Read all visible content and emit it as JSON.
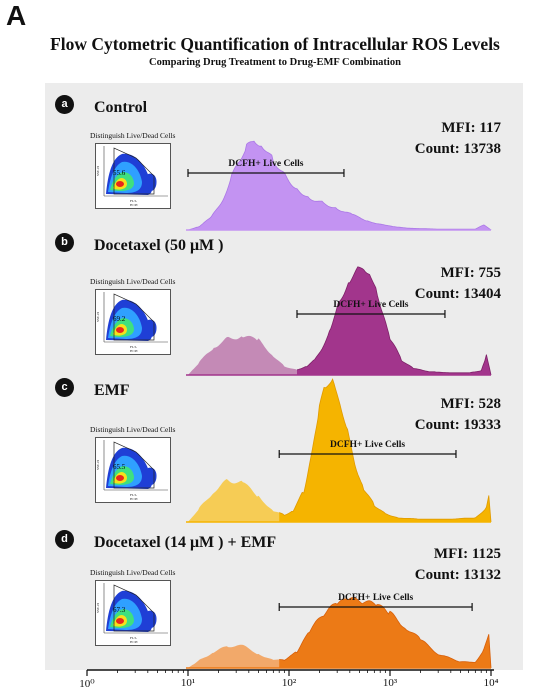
{
  "panel_label": "A",
  "header": {
    "title": "Flow Cytometric Quantification of Intracellular ROS Levels",
    "subtitle": "Comparing Drug Treatment to Drug-EMF Combination"
  },
  "colors": {
    "background": "#ececec",
    "control": "#c393f2",
    "docetaxel": "#a2358c",
    "emf": "#f5b400",
    "combo": "#ec7a16",
    "axis": "#111111"
  },
  "chart_data": {
    "type": "area",
    "x_scale": "log",
    "xlim": [
      1,
      10000
    ],
    "x_ticks": [
      "10⁰",
      "10¹",
      "10²",
      "10³",
      "10⁴"
    ],
    "inset_title": "Distinguish Live/Dead Cells",
    "gate_label": "DCFH+ Live Cells",
    "series": [
      {
        "letter": "a",
        "name": "Control",
        "mfi_text": "MFI: 117",
        "count_text": "Count: 13738",
        "mfi": 117,
        "count": 13738,
        "inset_percent": "55.6",
        "color_key": "control",
        "gate_range": [
          10,
          350
        ],
        "x": [
          10,
          13,
          17,
          22,
          27,
          32,
          38,
          45,
          55,
          70,
          90,
          120,
          160,
          220,
          300,
          420,
          600,
          900,
          1500,
          3000,
          7000,
          8500,
          10000
        ],
        "y": [
          0,
          0.04,
          0.14,
          0.34,
          0.58,
          0.78,
          0.92,
          1.0,
          0.94,
          0.78,
          0.62,
          0.46,
          0.36,
          0.3,
          0.24,
          0.17,
          0.1,
          0.05,
          0.02,
          0.01,
          0.01,
          0.06,
          0
        ]
      },
      {
        "letter": "b",
        "name": "Docetaxel (50 μM )",
        "mfi_text": "MFI: 755",
        "count_text": "Count: 13404",
        "mfi": 755,
        "count": 13404,
        "inset_percent": "69.2",
        "color_key": "docetaxel",
        "gate_range": [
          120,
          3500
        ],
        "x": [
          10,
          13,
          18,
          25,
          35,
          50,
          70,
          90,
          120,
          150,
          180,
          220,
          260,
          320,
          400,
          480,
          550,
          650,
          750,
          850,
          1000,
          1300,
          1700,
          2500,
          4000,
          6000,
          8000,
          9000,
          10000
        ],
        "y": [
          0,
          0.12,
          0.26,
          0.34,
          0.36,
          0.32,
          0.18,
          0.08,
          0.05,
          0.08,
          0.14,
          0.28,
          0.46,
          0.7,
          0.88,
          0.98,
          1.0,
          0.92,
          0.76,
          0.54,
          0.34,
          0.14,
          0.06,
          0.03,
          0.02,
          0.02,
          0.04,
          0.18,
          0
        ]
      },
      {
        "letter": "c",
        "name": "EMF",
        "mfi_text": "MFI: 528",
        "count_text": "Count: 19333",
        "mfi": 528,
        "count": 19333,
        "inset_percent": "65.5",
        "color_key": "emf",
        "gate_range": [
          80,
          4500
        ],
        "x": [
          10,
          13,
          18,
          25,
          35,
          50,
          70,
          90,
          110,
          140,
          170,
          200,
          230,
          270,
          320,
          380,
          450,
          550,
          700,
          900,
          1200,
          2000,
          4000,
          7000,
          9000,
          9500,
          10000
        ],
        "y": [
          0,
          0.1,
          0.22,
          0.3,
          0.28,
          0.18,
          0.08,
          0.05,
          0.08,
          0.22,
          0.5,
          0.82,
          0.98,
          1.0,
          0.86,
          0.64,
          0.42,
          0.24,
          0.12,
          0.06,
          0.03,
          0.02,
          0.02,
          0.03,
          0.1,
          0.18,
          0
        ]
      },
      {
        "letter": "d",
        "name": "Docetaxel (14 μM ) + EMF",
        "mfi_text": "MFI: 1125",
        "count_text": "Count: 13132",
        "mfi": 1125,
        "count": 13132,
        "inset_percent": "67.3",
        "color_key": "combo",
        "gate_range": [
          80,
          6500
        ],
        "x": [
          10,
          13,
          18,
          25,
          35,
          50,
          70,
          90,
          120,
          160,
          220,
          300,
          400,
          550,
          750,
          1000,
          1400,
          2000,
          3000,
          5000,
          7000,
          8500,
          9500,
          10000
        ],
        "y": [
          0,
          0.08,
          0.16,
          0.22,
          0.22,
          0.14,
          0.08,
          0.08,
          0.16,
          0.36,
          0.54,
          0.64,
          0.68,
          0.66,
          0.62,
          0.54,
          0.42,
          0.28,
          0.14,
          0.06,
          0.06,
          0.18,
          0.32,
          0
        ]
      }
    ]
  }
}
